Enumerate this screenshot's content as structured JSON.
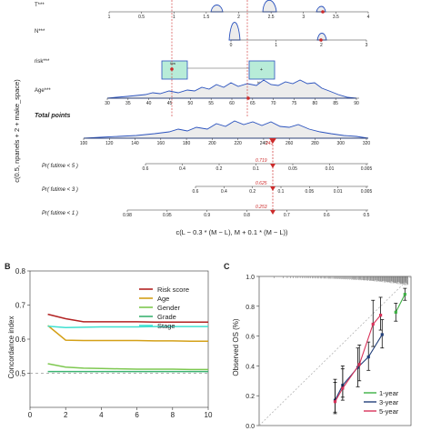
{
  "panel_a": {
    "ylabel": "c(0.5, npanels + 2 + make_space)",
    "xlabel": "c(L − 0.3 * (M − L), M + 0.1 * (M − L))",
    "rows": {
      "t_label": "T***",
      "n_label": "N***",
      "risk_label": "risk***",
      "age_label": "Age***",
      "total_label": "Total points",
      "p5_label": "Pr( futime < 5 )",
      "p3_label": "Pr( futime < 3 )",
      "p1_label": "Pr( futime < 1 )"
    },
    "t_ticks": [
      "1",
      "0.5",
      "1",
      "1.5",
      "2",
      "2.5",
      "3",
      "3.5",
      "4"
    ],
    "n_ticks": [
      "0",
      "1",
      "2",
      "3"
    ],
    "risk_categories": [
      "low",
      "high"
    ],
    "age_ticks": [
      "30",
      "35",
      "40",
      "45",
      "50",
      "55",
      "60",
      "65",
      "70",
      "75",
      "80",
      "85",
      "90"
    ],
    "total_ticks": [
      "100",
      "120",
      "140",
      "160",
      "180",
      "200",
      "220",
      "240",
      "260",
      "280",
      "300",
      "320"
    ],
    "p5_ticks": [
      "0.6",
      "0.4",
      "0.2",
      "0.1",
      "0.05",
      "0.01",
      "0.005"
    ],
    "p3_ticks": [
      "0.6",
      "0.4",
      "0.2",
      "0.1",
      "0.05",
      "0.01",
      "0.005"
    ],
    "p1_ticks": [
      "0.98",
      "0.95",
      "0.9",
      "0.8",
      "0.7",
      "0.6",
      "0.5"
    ],
    "highlight": {
      "total_points": "243",
      "pr5": "0.719",
      "pr3": "0.625",
      "pr1": "0.253"
    }
  },
  "panel_b": {
    "letter": "B",
    "legend": [
      "Risk score",
      "Age",
      "Gender",
      "Grade",
      "Stage"
    ]
  },
  "panel_c": {
    "letter": "C",
    "legend": [
      "1-year",
      "3-year",
      "5-year"
    ]
  },
  "colors": {
    "red": "#cc2a2a",
    "blue": "#2a52be",
    "risk_score": "#b22222",
    "age": "#d4a017",
    "gender": "#7ec850",
    "grade": "#3cb371",
    "stage": "#40e0d0",
    "year1": "#3cb043",
    "year3": "#23407a",
    "year5": "#d9325a"
  },
  "chart_data": [
    {
      "type": "line",
      "id": "B",
      "xlabel": "",
      "ylabel": "Concordance index",
      "xlim": [
        0,
        10
      ],
      "ylim": [
        0.4,
        0.8
      ],
      "x_ticks": [
        0,
        2,
        4,
        6,
        8,
        10
      ],
      "y_ticks": [
        0.5,
        0.6,
        0.7,
        0.8
      ],
      "reference_line": 0.5,
      "x": [
        1,
        2,
        3,
        4,
        5,
        6,
        7,
        8,
        9,
        10
      ],
      "series": [
        {
          "name": "Risk score",
          "values": [
            0.673,
            0.66,
            0.651,
            0.651,
            0.651,
            0.651,
            0.65,
            0.65,
            0.65,
            0.65
          ]
        },
        {
          "name": "Age",
          "values": [
            0.64,
            0.597,
            0.596,
            0.596,
            0.596,
            0.596,
            0.595,
            0.595,
            0.594,
            0.594
          ]
        },
        {
          "name": "Gender",
          "values": [
            0.528,
            0.518,
            0.515,
            0.514,
            0.513,
            0.512,
            0.512,
            0.512,
            0.511,
            0.511
          ]
        },
        {
          "name": "Grade",
          "values": [
            0.505,
            0.505,
            0.505,
            0.505,
            0.505,
            0.505,
            0.505,
            0.505,
            0.505,
            0.505
          ]
        },
        {
          "name": "Stage",
          "values": [
            0.638,
            0.634,
            0.635,
            0.636,
            0.636,
            0.636,
            0.637,
            0.637,
            0.637,
            0.637
          ]
        }
      ]
    },
    {
      "type": "line",
      "id": "C",
      "xlabel": "",
      "ylabel": "Observed OS (%)",
      "xlim": [
        0,
        1
      ],
      "ylim": [
        0,
        1
      ],
      "y_ticks": [
        0.0,
        0.2,
        0.4,
        0.6,
        0.8,
        1.0
      ],
      "reference_line": "diagonal",
      "series": [
        {
          "name": "1-year",
          "x": [
            0.9,
            0.96
          ],
          "y": [
            0.76,
            0.88
          ],
          "err_low": [
            0.7,
            0.84
          ],
          "err_high": [
            0.82,
            0.92
          ]
        },
        {
          "name": "3-year",
          "x": [
            0.5,
            0.55,
            0.65,
            0.72,
            0.81
          ],
          "y": [
            0.17,
            0.27,
            0.39,
            0.46,
            0.61
          ],
          "err_low": [
            0.09,
            0.19,
            0.26,
            0.37,
            0.52
          ],
          "err_high": [
            0.31,
            0.4,
            0.52,
            0.56,
            0.71
          ]
        },
        {
          "name": "5-year",
          "x": [
            0.5,
            0.55,
            0.66,
            0.75,
            0.8
          ],
          "y": [
            0.16,
            0.25,
            0.41,
            0.68,
            0.74
          ],
          "err_low": [
            0.08,
            0.17,
            0.3,
            0.53,
            0.64
          ],
          "err_high": [
            0.29,
            0.38,
            0.54,
            0.84,
            0.86
          ]
        }
      ]
    }
  ]
}
